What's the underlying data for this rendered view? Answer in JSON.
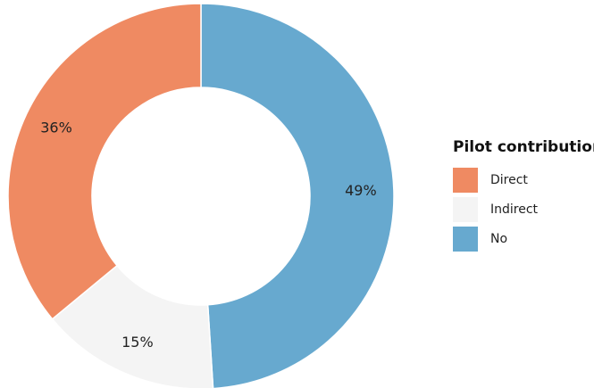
{
  "chart_data": {
    "type": "pie",
    "title": "",
    "legend_title": "Pilot contribution",
    "legend_position": "right",
    "categories": [
      "Direct",
      "Indirect",
      "No"
    ],
    "values": [
      36,
      15,
      49
    ],
    "labels": [
      "36%",
      "15%",
      "49%"
    ],
    "colors": [
      "#EF8A62",
      "#F4F4F4",
      "#67A9CF"
    ],
    "hole": true
  }
}
